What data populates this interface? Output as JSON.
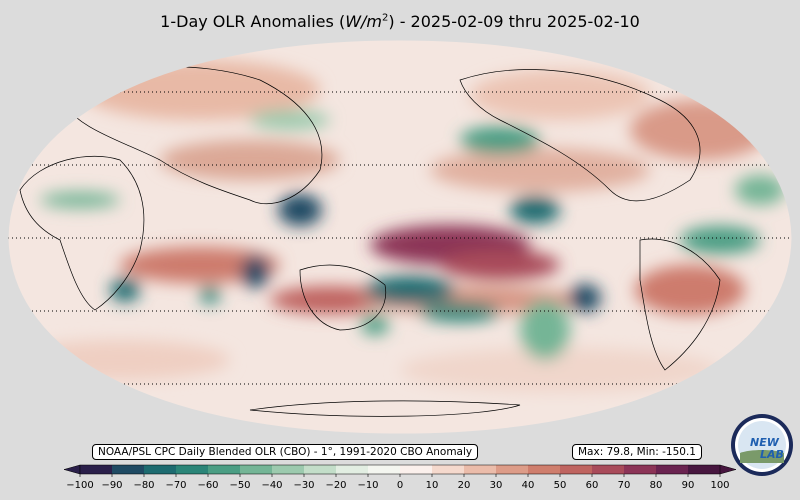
{
  "title": {
    "prefix": "1-Day OLR Anomalies (",
    "unit_base": "W/m",
    "unit_exp": "2",
    "suffix": ") - 2025-02-09 thru 2025-02-10"
  },
  "source_label": "NOAA/PSL CPC Daily Blended OLR (CBO) - 1°, 1991-2020 CBO Anomaly",
  "stats_label": "Max: 79.8,  Min: -150.1",
  "colorbar": {
    "ticks": [
      "−100",
      "−90",
      "−80",
      "−70",
      "−60",
      "−50",
      "−40",
      "−30",
      "−20",
      "−10",
      "0",
      "10",
      "20",
      "30",
      "40",
      "50",
      "60",
      "70",
      "80",
      "90",
      "100"
    ],
    "colors": [
      "#2a1f4a",
      "#1f4a63",
      "#1d6b70",
      "#2b8578",
      "#4b9e84",
      "#74b596",
      "#9ccaae",
      "#c3dec9",
      "#e2eee2",
      "#f4f6f0",
      "#fbf0ec",
      "#f5d9cd",
      "#ebbcaa",
      "#dd9c88",
      "#cf7e6d",
      "#bf6460",
      "#a94b5a",
      "#8c3457",
      "#6a2350",
      "#47163f"
    ]
  },
  "logo": {
    "text_top": "NEW",
    "text_bottom": "LAB",
    "icon": "noaa-psl-logo"
  }
}
